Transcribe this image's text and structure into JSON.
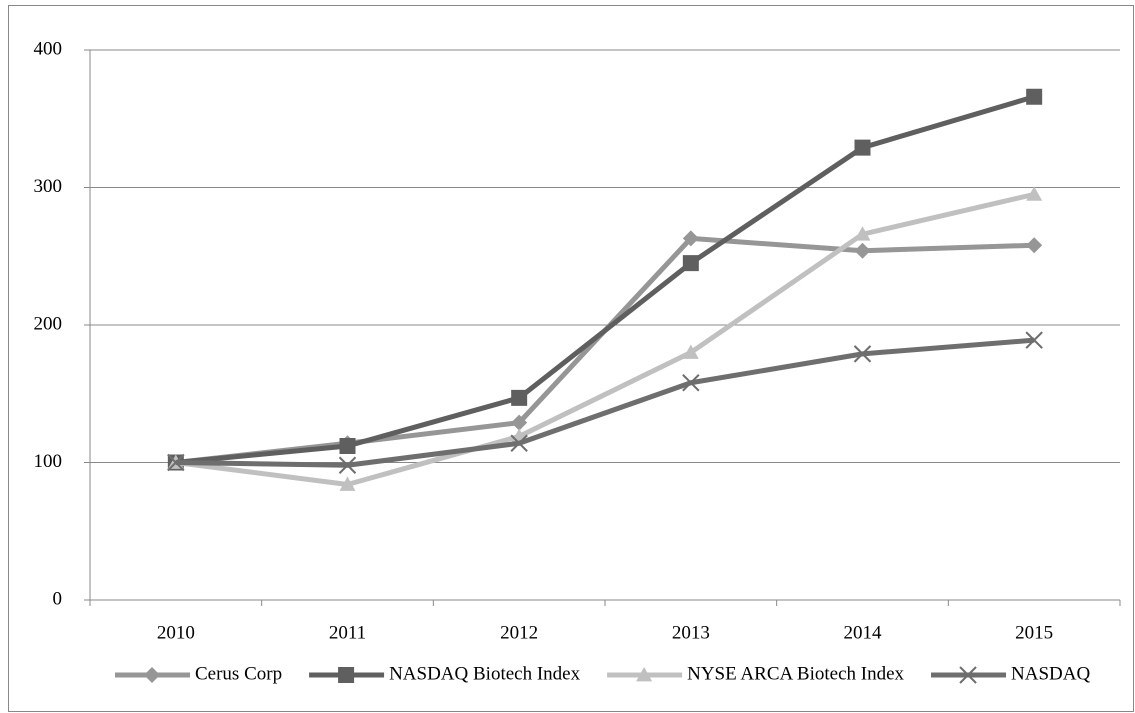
{
  "chart_data": {
    "type": "line",
    "categories": [
      "2010",
      "2011",
      "2012",
      "2013",
      "2014",
      "2015"
    ],
    "series": [
      {
        "name": "Cerus Corp",
        "color": "#969696",
        "marker": "diamond",
        "values": [
          100,
          114,
          129,
          263,
          254,
          258
        ]
      },
      {
        "name": "NASDAQ Biotech Index",
        "color": "#5f5f5f",
        "marker": "square",
        "values": [
          100,
          112,
          147,
          245,
          329,
          366
        ]
      },
      {
        "name": "NYSE ARCA Biotech Index",
        "color": "#c0c0c0",
        "marker": "triangle",
        "values": [
          100,
          84,
          119,
          180,
          266,
          295
        ]
      },
      {
        "name": "NASDAQ",
        "color": "#6e6e6e",
        "marker": "x",
        "values": [
          100,
          98,
          114,
          158,
          179,
          189
        ]
      }
    ],
    "ylim": [
      0,
      400
    ],
    "yticks": [
      0,
      100,
      200,
      300,
      400
    ],
    "grid": true,
    "legend": "bottom"
  }
}
